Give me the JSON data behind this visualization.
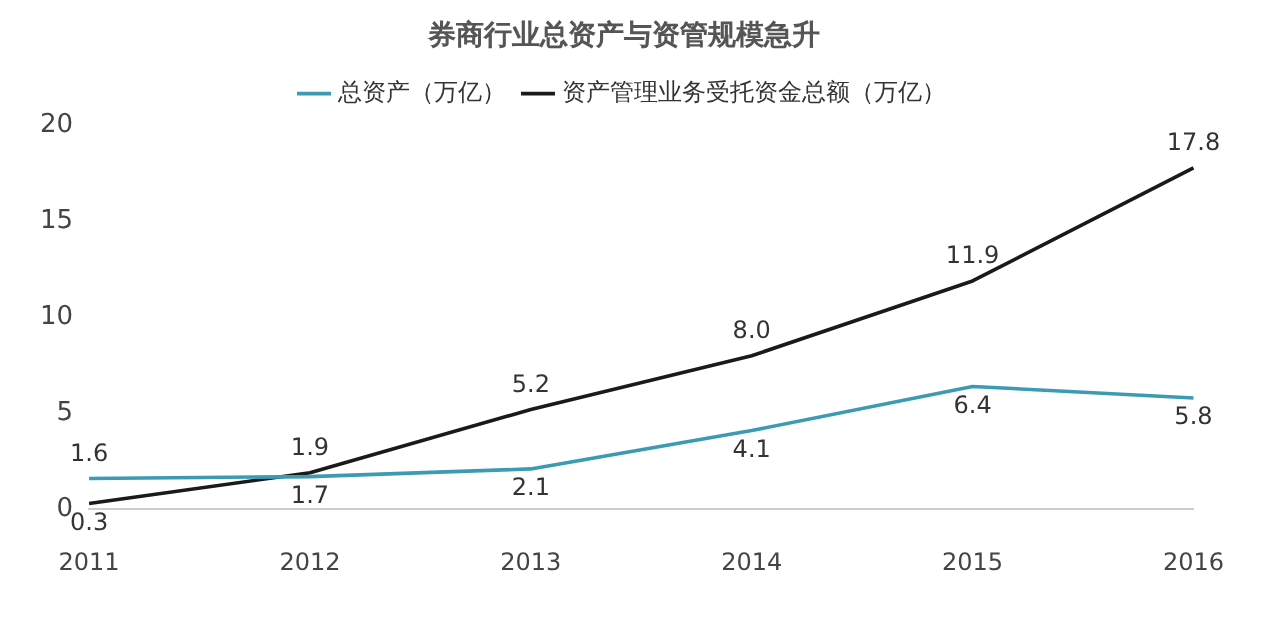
{
  "chart_data": {
    "type": "line",
    "title": "券商行业总资产与资管规模急升",
    "categories": [
      "2011",
      "2012",
      "2013",
      "2014",
      "2015",
      "2016"
    ],
    "series": [
      {
        "name": "总资产（万亿）",
        "color": "#3b9bb3",
        "values": [
          1.6,
          1.7,
          2.1,
          4.1,
          6.4,
          5.8
        ],
        "value_labels": [
          "1.6",
          "1.7",
          "2.1",
          "4.1",
          "6.4",
          "5.8"
        ]
      },
      {
        "name": "资产管理业务受托资金总额（万亿）",
        "color": "#1a1a1a",
        "values": [
          0.3,
          1.9,
          5.2,
          8.0,
          11.9,
          17.8
        ],
        "value_labels": [
          "0.3",
          "1.9",
          "5.2",
          "8.0",
          "11.9",
          "17.8"
        ]
      }
    ],
    "ylim": [
      0,
      20
    ],
    "yticks": [
      0,
      5,
      10,
      15,
      20
    ],
    "grid": false,
    "legend": "top",
    "marker": "none",
    "line_style": "solid"
  }
}
